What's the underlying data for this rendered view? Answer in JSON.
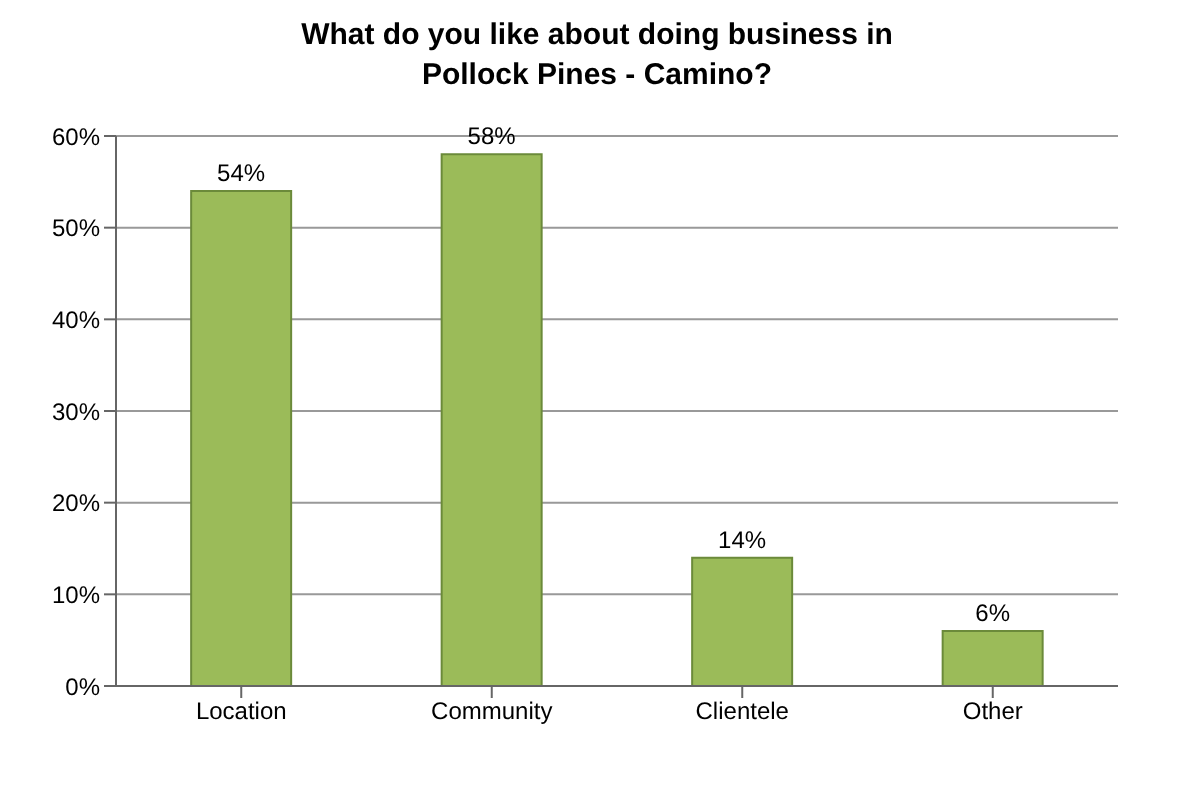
{
  "chart_data": {
    "type": "bar",
    "title": "What do you like about doing business in Pollock Pines - Camino?",
    "categories": [
      "Location",
      "Community",
      "Clientele",
      "Other"
    ],
    "values": [
      54,
      58,
      14,
      6
    ],
    "color": "#9bbb59",
    "value_labels": [
      "54%",
      "58%",
      "14%",
      "6%"
    ],
    "ylim": [
      0,
      60
    ],
    "yticks": [
      {
        "value": 0,
        "label": "0%"
      },
      {
        "value": 10,
        "label": "10%"
      },
      {
        "value": 20,
        "label": "20%"
      },
      {
        "value": 30,
        "label": "30%"
      },
      {
        "value": 40,
        "label": "40%"
      },
      {
        "value": 50,
        "label": "50%"
      },
      {
        "value": 60,
        "label": "60%"
      }
    ],
    "grid": "y"
  }
}
